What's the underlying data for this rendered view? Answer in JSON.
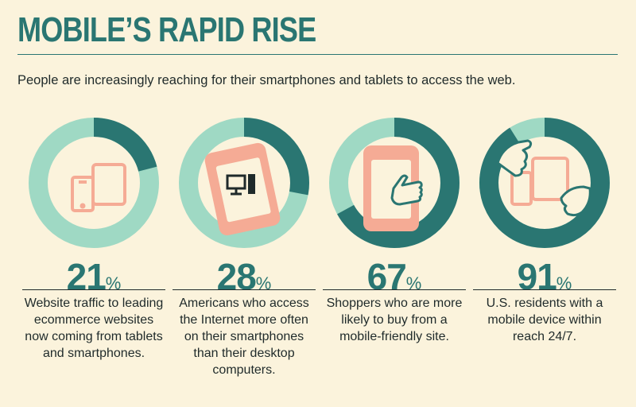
{
  "header": {
    "title": "MOBILE’S RAPID RISE",
    "subtitle": "People are increasingly reaching for their smartphones and tablets to access the web."
  },
  "colors": {
    "teal_dark": "#2a7672",
    "teal_light": "#9fd9c4",
    "salmon": "#f5ab95",
    "background": "#fbf3dc"
  },
  "stats": [
    {
      "value": 21,
      "number": "21",
      "sign": "%",
      "icon": "devices-icon",
      "description": "Website traffic to leading ecommerce websites now coming from tablets and smartphones."
    },
    {
      "value": 28,
      "number": "28",
      "sign": "%",
      "icon": "phone-computer-icon",
      "description": "Americans who access the Internet more often on their smartphones than their desktop computers."
    },
    {
      "value": 67,
      "number": "67",
      "sign": "%",
      "icon": "phone-tap-icon",
      "description": "Shoppers who are more likely to buy from a mobile-friendly site."
    },
    {
      "value": 91,
      "number": "91",
      "sign": "%",
      "icon": "hands-devices-icon",
      "description": "U.S. residents with a mobile device within reach 24/7."
    }
  ]
}
